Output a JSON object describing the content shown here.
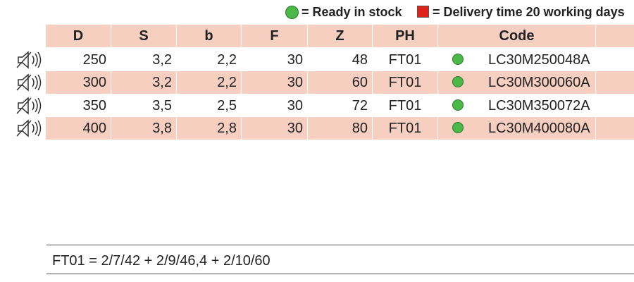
{
  "legend": {
    "ready": "= Ready in stock",
    "delivery": "= Delivery time 20 working days"
  },
  "table": {
    "headers": [
      "D",
      "S",
      "b",
      "F",
      "Z",
      "PH",
      "Code"
    ],
    "rows": [
      [
        250,
        "3,2",
        "2,2",
        30,
        48,
        "FT01",
        "LC30M250048A"
      ],
      [
        300,
        "3,2",
        "2,2",
        30,
        60,
        "FT01",
        "LC30M300060A"
      ],
      [
        350,
        "3,5",
        "2,5",
        30,
        72,
        "FT01",
        "LC30M350072A"
      ],
      [
        400,
        "3,8",
        "2,8",
        30,
        80,
        "FT01",
        "LC30M400080A"
      ]
    ]
  },
  "footnote": "FT01 = 2/7/42 + 2/9/46,4 + 2/10/60"
}
